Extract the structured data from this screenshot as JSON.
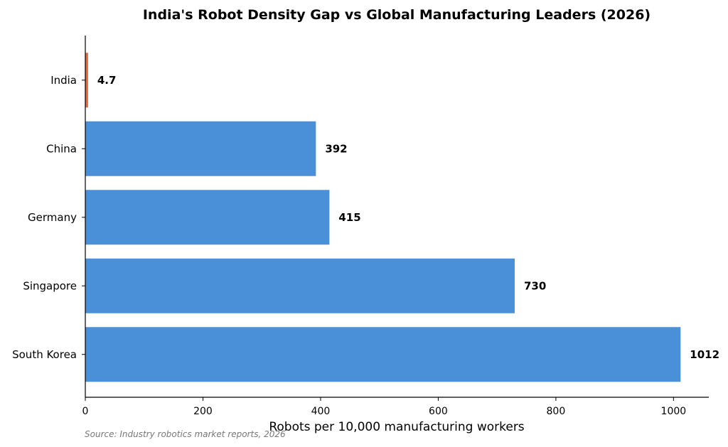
{
  "chart_data": {
    "type": "bar",
    "orientation": "horizontal",
    "title": "India's Robot Density Gap vs Global Manufacturing Leaders (2026)",
    "xlabel": "Robots per 10,000 manufacturing workers",
    "ylabel": "",
    "categories": [
      "India",
      "China",
      "Germany",
      "Singapore",
      "South Korea"
    ],
    "values": [
      4.7,
      392,
      415,
      730,
      1012
    ],
    "value_labels": [
      "4.7",
      "392",
      "415",
      "730",
      "1012"
    ],
    "bar_colors": [
      "#E8693F",
      "#4A90D9",
      "#4A90D9",
      "#4A90D9",
      "#4A90D9"
    ],
    "xlim": [
      0,
      1060
    ],
    "xticks": [
      0,
      200,
      400,
      600,
      800,
      1000
    ],
    "xtick_labels": [
      "0",
      "200",
      "400",
      "600",
      "800",
      "1000"
    ],
    "grid": false,
    "legend": "none"
  },
  "footer": {
    "source": "Source: Industry robotics market reports, 2026"
  }
}
